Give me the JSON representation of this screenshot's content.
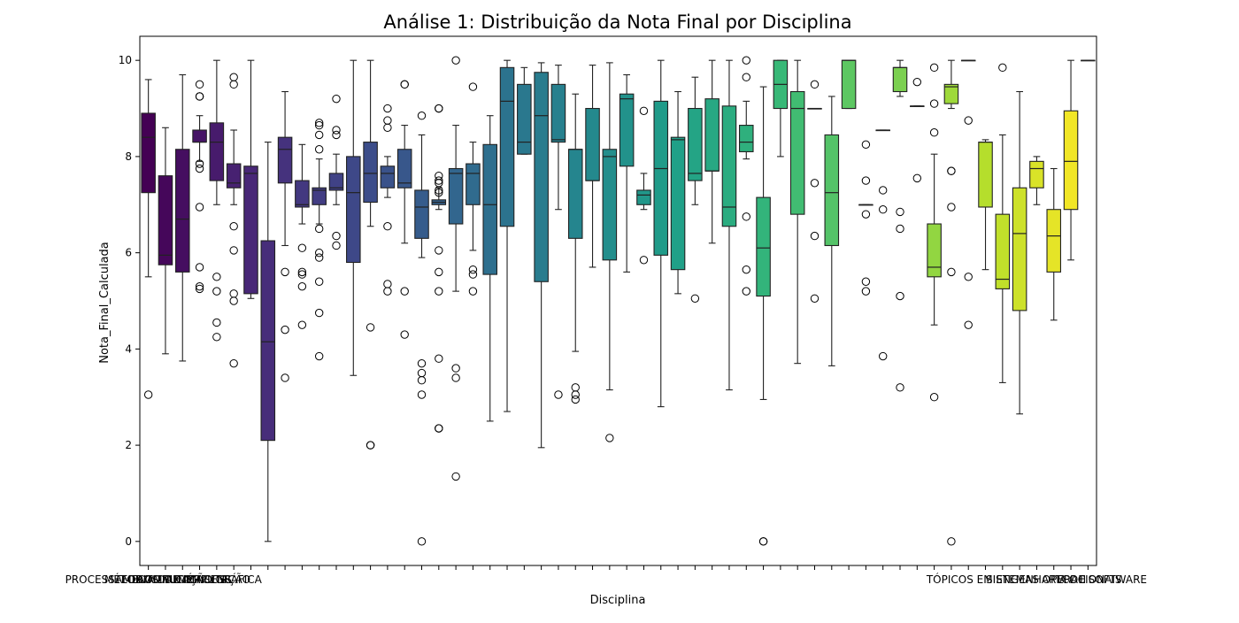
{
  "chart_data": {
    "type": "box",
    "title": "Análise 1: Distribuição da Nota Final por Disciplina",
    "xlabel": "Disciplina",
    "ylabel": "Nota_Final_Calculada",
    "ylim": [
      -0.5,
      10.5
    ],
    "yticks": [
      0,
      2,
      4,
      6,
      8,
      10
    ],
    "grid": false,
    "legend": "none",
    "palette": "viridis",
    "categories": [
      "PROCESSAMENTO DE IMAGENS",
      "MÉTODOS NUMÉRICOS",
      "TEORIA DA COMPUTAÇÃO",
      "COMPUTAÇÃO GRÁFICA",
      "",
      "",
      "",
      "",
      "",
      "",
      "",
      "",
      "",
      "",
      "",
      "",
      "",
      "",
      "",
      "",
      "",
      "",
      "",
      "",
      "",
      "",
      "",
      "",
      "",
      "",
      "",
      "",
      "",
      "",
      "",
      "",
      "",
      "",
      "",
      "",
      "",
      "",
      "",
      "",
      "",
      "",
      "",
      "",
      "",
      "",
      "",
      "",
      "TÓPICOS EM ENGENHARIA DE SOFTWARE",
      "SISTEMAS OPERACIONAIS",
      "TCC II"
    ],
    "boxes": [
      {
        "whislo": 5.5,
        "q1": 7.25,
        "med": 8.4,
        "q3": 8.9,
        "whishi": 9.6,
        "fliers": [
          3.05
        ]
      },
      {
        "whislo": 3.9,
        "q1": 5.75,
        "med": 5.95,
        "q3": 7.6,
        "whishi": 8.6,
        "fliers": []
      },
      {
        "whislo": 3.75,
        "q1": 5.6,
        "med": 6.7,
        "q3": 8.15,
        "whishi": 9.7,
        "fliers": []
      },
      {
        "whislo": 7.9,
        "q1": 8.3,
        "med": 8.3,
        "q3": 8.55,
        "whishi": 8.85,
        "fliers": [
          9.5,
          9.25,
          9.25,
          7.85,
          7.75,
          6.95,
          5.7,
          5.3,
          5.25
        ]
      },
      {
        "whislo": 7.0,
        "q1": 7.5,
        "med": 8.3,
        "q3": 8.7,
        "whishi": 10.0,
        "fliers": [
          5.5,
          5.2,
          4.55,
          4.25
        ]
      },
      {
        "whislo": 7.0,
        "q1": 7.35,
        "med": 7.45,
        "q3": 7.85,
        "whishi": 8.55,
        "fliers": [
          9.65,
          9.5,
          6.55,
          6.05,
          5.15,
          5.0,
          3.7
        ]
      },
      {
        "whislo": 5.05,
        "q1": 5.15,
        "med": 7.65,
        "q3": 7.8,
        "whishi": 10.0,
        "fliers": []
      },
      {
        "whislo": 0.0,
        "q1": 2.1,
        "med": 4.15,
        "q3": 6.25,
        "whishi": 8.3,
        "fliers": []
      },
      {
        "whislo": 6.15,
        "q1": 7.45,
        "med": 8.15,
        "q3": 8.4,
        "whishi": 9.35,
        "fliers": [
          5.6,
          4.4,
          3.4
        ]
      },
      {
        "whislo": 6.6,
        "q1": 6.95,
        "med": 7.0,
        "q3": 7.5,
        "whishi": 8.25,
        "fliers": [
          6.1,
          5.6,
          5.55,
          5.3,
          4.5
        ]
      },
      {
        "whislo": 6.6,
        "q1": 7.0,
        "med": 7.3,
        "q3": 7.35,
        "whishi": 7.95,
        "fliers": [
          8.7,
          8.65,
          8.45,
          8.15,
          6.5,
          6.0,
          5.9,
          5.4,
          4.75,
          3.85
        ]
      },
      {
        "whislo": 7.0,
        "q1": 7.3,
        "med": 7.35,
        "q3": 7.65,
        "whishi": 8.05,
        "fliers": [
          9.2,
          8.55,
          8.45,
          6.35,
          6.15
        ]
      },
      {
        "whislo": 3.45,
        "q1": 5.8,
        "med": 7.25,
        "q3": 8.0,
        "whishi": 10.0,
        "fliers": []
      },
      {
        "whislo": 6.55,
        "q1": 7.05,
        "med": 7.65,
        "q3": 8.3,
        "whishi": 10.0,
        "fliers": [
          4.45,
          2.0,
          2.0
        ]
      },
      {
        "whislo": 7.15,
        "q1": 7.35,
        "med": 7.65,
        "q3": 7.8,
        "whishi": 8.0,
        "fliers": [
          9.0,
          8.75,
          8.6,
          6.55,
          5.35,
          5.2
        ]
      },
      {
        "whislo": 6.2,
        "q1": 7.35,
        "med": 7.45,
        "q3": 8.15,
        "whishi": 8.65,
        "fliers": [
          9.5,
          9.5,
          5.2,
          4.3
        ]
      },
      {
        "whislo": 5.9,
        "q1": 6.3,
        "med": 6.95,
        "q3": 7.3,
        "whishi": 8.45,
        "fliers": [
          8.85,
          3.7,
          3.5,
          3.35,
          3.05,
          0.0
        ]
      },
      {
        "whislo": 6.9,
        "q1": 7.0,
        "med": 7.05,
        "q3": 7.1,
        "whishi": 7.35,
        "fliers": [
          9.0,
          9.0,
          7.6,
          7.5,
          7.45,
          7.3,
          7.25,
          6.05,
          5.6,
          5.2,
          3.8,
          2.35,
          2.35
        ]
      },
      {
        "whislo": 5.2,
        "q1": 6.6,
        "med": 7.65,
        "q3": 7.75,
        "whishi": 8.65,
        "fliers": [
          10.0,
          3.6,
          3.4,
          1.35
        ]
      },
      {
        "whislo": 6.05,
        "q1": 7.0,
        "med": 7.65,
        "q3": 7.85,
        "whishi": 8.3,
        "fliers": [
          9.45,
          5.65,
          5.55,
          5.2
        ]
      },
      {
        "whislo": 2.5,
        "q1": 5.55,
        "med": 7.0,
        "q3": 8.25,
        "whishi": 8.85,
        "fliers": []
      },
      {
        "whislo": 2.7,
        "q1": 6.55,
        "med": 9.15,
        "q3": 9.85,
        "whishi": 10.0,
        "fliers": []
      },
      {
        "whislo": 8.05,
        "q1": 8.05,
        "med": 8.3,
        "q3": 9.5,
        "whishi": 9.85,
        "fliers": []
      },
      {
        "whislo": 1.95,
        "q1": 5.4,
        "med": 8.85,
        "q3": 9.75,
        "whishi": 9.95,
        "fliers": []
      },
      {
        "whislo": 6.9,
        "q1": 8.3,
        "med": 8.35,
        "q3": 9.5,
        "whishi": 9.9,
        "fliers": [
          3.05
        ]
      },
      {
        "whislo": 3.95,
        "q1": 6.3,
        "med": 8.15,
        "q3": 8.15,
        "whishi": 9.3,
        "fliers": [
          3.2,
          3.05,
          2.95
        ]
      },
      {
        "whislo": 5.7,
        "q1": 7.5,
        "med": 7.5,
        "q3": 9.0,
        "whishi": 9.9,
        "fliers": []
      },
      {
        "whislo": 3.15,
        "q1": 5.85,
        "med": 8.0,
        "q3": 8.15,
        "whishi": 9.95,
        "fliers": [
          2.15
        ]
      },
      {
        "whislo": 5.6,
        "q1": 7.8,
        "med": 9.2,
        "q3": 9.3,
        "whishi": 9.7,
        "fliers": []
      },
      {
        "whislo": 6.9,
        "q1": 7.0,
        "med": 7.2,
        "q3": 7.3,
        "whishi": 7.65,
        "fliers": [
          8.95,
          5.85
        ]
      },
      {
        "whislo": 2.8,
        "q1": 5.95,
        "med": 7.75,
        "q3": 9.15,
        "whishi": 10.0,
        "fliers": []
      },
      {
        "whislo": 5.15,
        "q1": 5.65,
        "med": 8.35,
        "q3": 8.4,
        "whishi": 9.35,
        "fliers": []
      },
      {
        "whislo": 7.0,
        "q1": 7.5,
        "med": 7.65,
        "q3": 9.0,
        "whishi": 9.65,
        "fliers": [
          5.05
        ]
      },
      {
        "whislo": 6.2,
        "q1": 7.7,
        "med": 7.7,
        "q3": 9.2,
        "whishi": 10.0,
        "fliers": []
      },
      {
        "whislo": 3.15,
        "q1": 6.55,
        "med": 6.95,
        "q3": 9.05,
        "whishi": 10.0,
        "fliers": []
      },
      {
        "whislo": 7.95,
        "q1": 8.1,
        "med": 8.3,
        "q3": 8.65,
        "whishi": 9.15,
        "fliers": [
          10.0,
          9.65,
          6.75,
          5.65,
          5.2
        ]
      },
      {
        "whislo": 2.95,
        "q1": 5.1,
        "med": 6.1,
        "q3": 7.15,
        "whishi": 9.45,
        "fliers": [
          0.0,
          0.0
        ]
      },
      {
        "whislo": 8.0,
        "q1": 9.0,
        "med": 9.5,
        "q3": 10.0,
        "whishi": 10.0,
        "fliers": []
      },
      {
        "whislo": 3.7,
        "q1": 6.8,
        "med": 9.0,
        "q3": 9.35,
        "whishi": 10.0,
        "fliers": []
      },
      {
        "whislo": 9.0,
        "q1": 9.0,
        "med": 9.0,
        "q3": 9.0,
        "whishi": 9.0,
        "fliers": [
          9.5,
          7.45,
          6.35,
          5.05
        ]
      },
      {
        "whislo": 3.65,
        "q1": 6.15,
        "med": 7.25,
        "q3": 8.45,
        "whishi": 9.25,
        "fliers": []
      },
      {
        "whislo": 9.0,
        "q1": 9.0,
        "med": 10.0,
        "q3": 10.0,
        "whishi": 10.0,
        "fliers": []
      },
      {
        "whislo": 7.0,
        "q1": 7.0,
        "med": 7.0,
        "q3": 7.0,
        "whishi": 7.0,
        "fliers": [
          8.25,
          7.5,
          6.8,
          5.4,
          5.2
        ]
      },
      {
        "whislo": 8.55,
        "q1": 8.55,
        "med": 8.55,
        "q3": 8.55,
        "whishi": 8.55,
        "fliers": [
          7.3,
          6.9,
          3.85
        ]
      },
      {
        "whislo": 9.25,
        "q1": 9.35,
        "med": 9.85,
        "q3": 9.85,
        "whishi": 10.0,
        "fliers": [
          6.85,
          6.5,
          5.1,
          3.2
        ]
      },
      {
        "whislo": 9.05,
        "q1": 9.05,
        "med": 9.05,
        "q3": 9.05,
        "whishi": 9.05,
        "fliers": [
          9.55,
          7.55
        ]
      },
      {
        "whislo": 4.5,
        "q1": 5.5,
        "med": 5.7,
        "q3": 6.6,
        "whishi": 8.05,
        "fliers": [
          9.85,
          9.1,
          8.5,
          3.0
        ]
      },
      {
        "whislo": 9.0,
        "q1": 9.1,
        "med": 9.45,
        "q3": 9.5,
        "whishi": 10.0,
        "fliers": [
          7.7,
          7.7,
          6.95,
          5.6,
          0.0
        ]
      },
      {
        "whislo": 10.0,
        "q1": 10.0,
        "med": 10.0,
        "q3": 10.0,
        "whishi": 10.0,
        "fliers": [
          8.75,
          5.5,
          4.5
        ]
      },
      {
        "whislo": 5.65,
        "q1": 6.95,
        "med": 8.3,
        "q3": 8.3,
        "whishi": 8.35,
        "fliers": []
      },
      {
        "whislo": 3.3,
        "q1": 5.25,
        "med": 5.45,
        "q3": 6.8,
        "whishi": 8.45,
        "fliers": [
          9.85
        ]
      },
      {
        "whislo": 2.65,
        "q1": 4.8,
        "med": 6.4,
        "q3": 7.35,
        "whishi": 9.35,
        "fliers": []
      },
      {
        "whislo": 7.0,
        "q1": 7.35,
        "med": 7.75,
        "q3": 7.9,
        "whishi": 8.0,
        "fliers": []
      },
      {
        "whislo": 4.6,
        "q1": 5.6,
        "med": 6.35,
        "q3": 6.9,
        "whishi": 7.75,
        "fliers": []
      },
      {
        "whislo": 5.85,
        "q1": 6.9,
        "med": 7.9,
        "q3": 8.95,
        "whishi": 10.0,
        "fliers": []
      },
      {
        "whislo": 10.0,
        "q1": 10.0,
        "med": 10.0,
        "q3": 10.0,
        "whishi": 10.0,
        "fliers": []
      }
    ]
  }
}
